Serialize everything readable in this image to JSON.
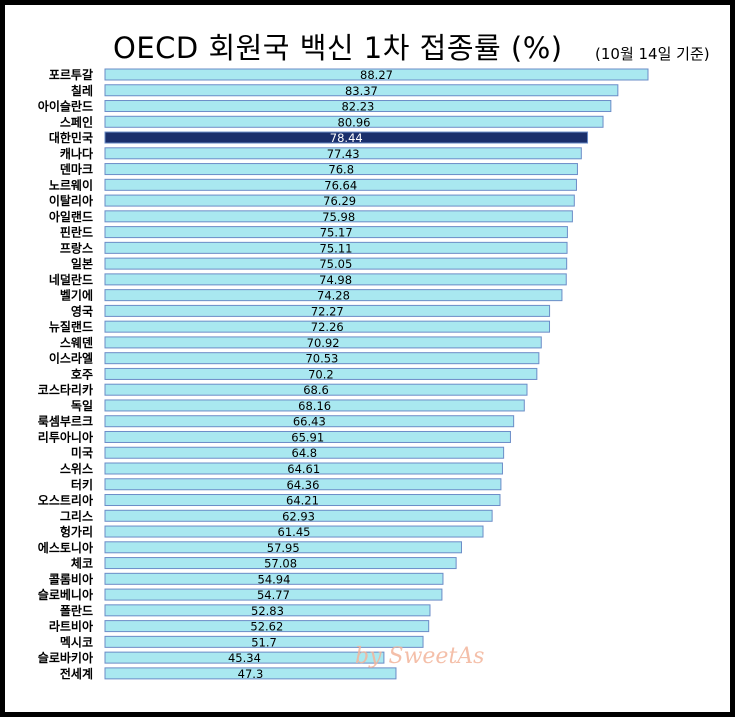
{
  "chart_data": {
    "type": "bar",
    "orientation": "horizontal",
    "title": "OECD 회원국 백신 1차 접종률 (%)",
    "subtitle": "(10월 14일 기준)",
    "categories": [
      "포르투갈",
      "칠레",
      "아이슬란드",
      "스페인",
      "대한민국",
      "캐나다",
      "덴마크",
      "노르웨이",
      "이탈리아",
      "아일랜드",
      "핀란드",
      "프랑스",
      "일본",
      "네덜란드",
      "벨기에",
      "영국",
      "뉴질랜드",
      "스웨덴",
      "이스라엘",
      "호주",
      "코스타리카",
      "독일",
      "룩셈부르크",
      "리투아니아",
      "미국",
      "스위스",
      "터키",
      "오스트리아",
      "그리스",
      "헝가리",
      "에스토니아",
      "체코",
      "콜롬비아",
      "슬로베니아",
      "폴란드",
      "라트비아",
      "멕시코",
      "슬로바키아",
      "전세계"
    ],
    "values": [
      88.27,
      83.37,
      82.23,
      80.96,
      78.44,
      77.43,
      76.8,
      76.64,
      76.29,
      75.98,
      75.17,
      75.11,
      75.05,
      74.98,
      74.28,
      72.27,
      72.26,
      70.92,
      70.53,
      70.2,
      68.6,
      68.16,
      66.43,
      65.91,
      64.8,
      64.61,
      64.36,
      64.21,
      62.93,
      61.45,
      57.95,
      57.08,
      54.94,
      54.77,
      52.83,
      52.62,
      51.7,
      45.34,
      47.3
    ],
    "value_labels": [
      "88.27",
      "83.37",
      "82.23",
      "80.96",
      "78.44",
      "77.43",
      "76.8",
      "76.64",
      "76.29",
      "75.98",
      "75.17",
      "75.11",
      "75.05",
      "74.98",
      "74.28",
      "72.27",
      "72.26",
      "70.92",
      "70.53",
      "70.2",
      "68.6",
      "68.16",
      "66.43",
      "65.91",
      "64.8",
      "64.61",
      "64.36",
      "64.21",
      "62.93",
      "61.45",
      "57.95",
      "57.08",
      "54.94",
      "54.77",
      "52.83",
      "52.62",
      "51.7",
      "45.34",
      "47.3"
    ],
    "highlight": "대한민국",
    "xlim": [
      0,
      88.27
    ],
    "grid": false,
    "colors": {
      "bar": "#a9e8f0",
      "bar_stroke": "#6b8cc7",
      "highlight_bar": "#1a2f6b",
      "highlight_label": "#ffffff",
      "label": "#000000",
      "frame": "#000000"
    }
  },
  "watermark": "by SweetAs"
}
